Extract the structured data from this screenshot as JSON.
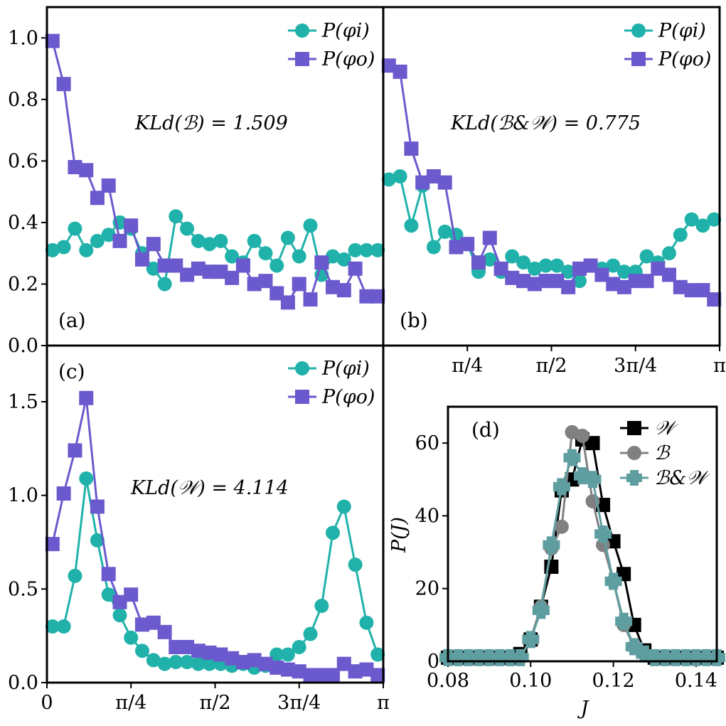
{
  "colors": {
    "teal": "#20b2aa",
    "purple": "#6a5acd",
    "black": "#000000",
    "gray": "#808080",
    "cadet": "#5f9ea0"
  },
  "chart_data": [
    {
      "type": "line",
      "panel_label": "(a)",
      "annotation": "KLd(ℬ) = 1.509",
      "x_ticks": [
        "0",
        "π/4",
        "π/2",
        "3π/4",
        "π"
      ],
      "x_tick_values": [
        0,
        0.7854,
        1.5708,
        2.3562,
        3.1416
      ],
      "x_ticks_visible": false,
      "xlim": [
        0,
        3.1416
      ],
      "ylim": [
        0,
        1.1
      ],
      "y_ticks": [
        0.0,
        0.2,
        0.4,
        0.6,
        0.8,
        1.0
      ],
      "y_tick_labels": [
        "0.0",
        "0.2",
        "0.4",
        "0.6",
        "0.8",
        "1.0"
      ],
      "legend": [
        "P(φi)",
        "P(φo)"
      ],
      "legend_position": "top-right",
      "x": [
        0.052,
        0.157,
        0.262,
        0.367,
        0.471,
        0.576,
        0.681,
        0.785,
        0.89,
        0.995,
        1.1,
        1.204,
        1.309,
        1.414,
        1.518,
        1.623,
        1.728,
        1.833,
        1.937,
        2.042,
        2.147,
        2.251,
        2.356,
        2.461,
        2.566,
        2.67,
        2.775,
        2.88,
        2.985,
        3.09
      ],
      "series": [
        {
          "name": "P(φi)",
          "color": "#20b2aa",
          "marker": "circle",
          "values": [
            0.31,
            0.32,
            0.38,
            0.31,
            0.34,
            0.36,
            0.4,
            0.38,
            0.3,
            0.25,
            0.2,
            0.42,
            0.38,
            0.34,
            0.33,
            0.34,
            0.29,
            0.27,
            0.34,
            0.3,
            0.26,
            0.35,
            0.29,
            0.39,
            0.23,
            0.29,
            0.28,
            0.31,
            0.31,
            0.31
          ]
        },
        {
          "name": "P(φo)",
          "color": "#6a5acd",
          "marker": "square",
          "values": [
            0.99,
            0.85,
            0.58,
            0.57,
            0.48,
            0.52,
            0.34,
            0.39,
            0.28,
            0.33,
            0.26,
            0.26,
            0.23,
            0.25,
            0.24,
            0.24,
            0.22,
            0.26,
            0.2,
            0.21,
            0.17,
            0.14,
            0.2,
            0.15,
            0.27,
            0.19,
            0.18,
            0.25,
            0.16,
            0.16
          ]
        }
      ]
    },
    {
      "type": "line",
      "panel_label": "(b)",
      "annotation": "KLd(ℬ&𝒲) = 0.775",
      "x_ticks": [
        "π/4",
        "π/2",
        "3π/4",
        "π"
      ],
      "x_tick_values": [
        0.7854,
        1.5708,
        2.3562,
        3.1416
      ],
      "xlim": [
        0,
        3.1416
      ],
      "ylim": [
        0,
        1.1
      ],
      "legend": [
        "P(φi)",
        "P(φo)"
      ],
      "legend_position": "top-right",
      "x": [
        0.052,
        0.157,
        0.262,
        0.367,
        0.471,
        0.576,
        0.681,
        0.785,
        0.89,
        0.995,
        1.1,
        1.204,
        1.309,
        1.414,
        1.518,
        1.623,
        1.728,
        1.833,
        1.937,
        2.042,
        2.147,
        2.251,
        2.356,
        2.461,
        2.566,
        2.67,
        2.775,
        2.88,
        2.985,
        3.09
      ],
      "series": [
        {
          "name": "P(φi)",
          "color": "#20b2aa",
          "marker": "circle",
          "values": [
            0.54,
            0.55,
            0.39,
            0.52,
            0.32,
            0.37,
            0.36,
            0.33,
            0.24,
            0.28,
            0.24,
            0.29,
            0.27,
            0.25,
            0.26,
            0.26,
            0.24,
            0.21,
            0.26,
            0.25,
            0.26,
            0.24,
            0.24,
            0.29,
            0.27,
            0.3,
            0.36,
            0.41,
            0.39,
            0.41
          ]
        },
        {
          "name": "P(φo)",
          "color": "#6a5acd",
          "marker": "square",
          "values": [
            0.91,
            0.89,
            0.64,
            0.53,
            0.55,
            0.53,
            0.32,
            0.33,
            0.27,
            0.35,
            0.25,
            0.22,
            0.21,
            0.2,
            0.21,
            0.21,
            0.19,
            0.25,
            0.26,
            0.23,
            0.2,
            0.19,
            0.21,
            0.21,
            0.25,
            0.23,
            0.19,
            0.18,
            0.18,
            0.15
          ]
        }
      ]
    },
    {
      "type": "line",
      "panel_label": "(c)",
      "annotation": "KLd(𝒲) = 4.114",
      "x_ticks": [
        "0",
        "π/4",
        "π/2",
        "3π/4",
        "π"
      ],
      "x_tick_values": [
        0,
        0.7854,
        1.5708,
        2.3562,
        3.1416
      ],
      "xlim": [
        0,
        3.1416
      ],
      "ylim": [
        0,
        1.8
      ],
      "y_ticks": [
        0.0,
        0.5,
        1.0,
        1.5
      ],
      "y_tick_labels": [
        "0.0",
        "0.5",
        "1.0",
        "1.5"
      ],
      "legend": [
        "P(φi)",
        "P(φo)"
      ],
      "legend_position": "top-right",
      "x": [
        0.052,
        0.157,
        0.262,
        0.367,
        0.471,
        0.576,
        0.681,
        0.785,
        0.89,
        0.995,
        1.1,
        1.204,
        1.309,
        1.414,
        1.518,
        1.623,
        1.728,
        1.833,
        1.937,
        2.042,
        2.147,
        2.251,
        2.356,
        2.461,
        2.566,
        2.67,
        2.775,
        2.88,
        2.985,
        3.09
      ],
      "series": [
        {
          "name": "P(φi)",
          "color": "#20b2aa",
          "marker": "circle",
          "values": [
            0.3,
            0.3,
            0.57,
            1.09,
            0.76,
            0.47,
            0.36,
            0.24,
            0.17,
            0.12,
            0.1,
            0.11,
            0.11,
            0.1,
            0.1,
            0.1,
            0.09,
            0.1,
            0.08,
            0.09,
            0.15,
            0.15,
            0.19,
            0.26,
            0.41,
            0.8,
            0.94,
            0.63,
            0.32,
            0.15
          ]
        },
        {
          "name": "P(φo)",
          "color": "#6a5acd",
          "marker": "square",
          "values": [
            0.74,
            1.01,
            1.24,
            1.52,
            0.94,
            0.58,
            0.43,
            0.47,
            0.31,
            0.32,
            0.27,
            0.19,
            0.19,
            0.17,
            0.16,
            0.15,
            0.13,
            0.11,
            0.12,
            0.1,
            0.08,
            0.07,
            0.06,
            0.04,
            0.04,
            0.04,
            0.1,
            0.06,
            0.07,
            0.04
          ]
        }
      ]
    },
    {
      "type": "line",
      "panel_label": "(d)",
      "xlabel": "J",
      "ylabel": "P(J)",
      "xlim": [
        0.08,
        0.145
      ],
      "ylim": [
        0,
        70
      ],
      "x_ticks": [
        0.08,
        0.1,
        0.12,
        0.14
      ],
      "x_tick_labels": [
        "0.08",
        "0.10",
        "0.12",
        "0.14"
      ],
      "y_ticks": [
        0,
        20,
        40,
        60
      ],
      "y_tick_labels": [
        "0",
        "20",
        "40",
        "60"
      ],
      "legend": [
        "𝒲",
        "ℬ",
        "ℬ&𝒲"
      ],
      "legend_position": "top-right",
      "series": [
        {
          "name": "𝒲",
          "color": "#000000",
          "marker": "square",
          "x": [
            0.08,
            0.0825,
            0.085,
            0.0875,
            0.09,
            0.0925,
            0.095,
            0.0975,
            0.1,
            0.1025,
            0.105,
            0.1075,
            0.11,
            0.1125,
            0.115,
            0.1175,
            0.12,
            0.1225,
            0.125,
            0.1275,
            0.13,
            0.1325,
            0.135,
            0.1375,
            0.14,
            0.1425,
            0.145
          ],
          "values": [
            1,
            1,
            1,
            1,
            1,
            1,
            1,
            2,
            6,
            15,
            26,
            47,
            50,
            61,
            60,
            43,
            33,
            24,
            10,
            3,
            1,
            1,
            1,
            1,
            1,
            1,
            1
          ]
        },
        {
          "name": "ℬ",
          "color": "#808080",
          "marker": "circle",
          "x": [
            0.08,
            0.0825,
            0.085,
            0.0875,
            0.09,
            0.0925,
            0.095,
            0.0975,
            0.1,
            0.1025,
            0.105,
            0.1075,
            0.11,
            0.1125,
            0.115,
            0.1175,
            0.12,
            0.1225,
            0.125,
            0.1275,
            0.13,
            0.1325,
            0.135,
            0.1375,
            0.14,
            0.1425,
            0.145
          ],
          "values": [
            1,
            1,
            1,
            1,
            1,
            1,
            1,
            1,
            6,
            15,
            31,
            37,
            63,
            62,
            44,
            32,
            22,
            10,
            4,
            2,
            1,
            1,
            1,
            1,
            1,
            1,
            1
          ]
        },
        {
          "name": "ℬ&𝒲",
          "color": "#5f9ea0",
          "marker": "plus",
          "x": [
            0.08,
            0.0825,
            0.085,
            0.0875,
            0.09,
            0.0925,
            0.095,
            0.0975,
            0.1,
            0.1025,
            0.105,
            0.1075,
            0.11,
            0.1125,
            0.115,
            0.1175,
            0.12,
            0.1225,
            0.125,
            0.1275,
            0.13,
            0.1325,
            0.135,
            0.1375,
            0.14,
            0.1425,
            0.145
          ],
          "values": [
            1,
            1,
            1,
            1,
            1,
            1,
            1,
            1,
            6,
            14,
            32,
            48,
            56,
            51,
            50,
            35,
            22,
            11,
            4,
            2,
            1,
            1,
            1,
            1,
            1,
            1,
            1
          ]
        }
      ]
    }
  ]
}
